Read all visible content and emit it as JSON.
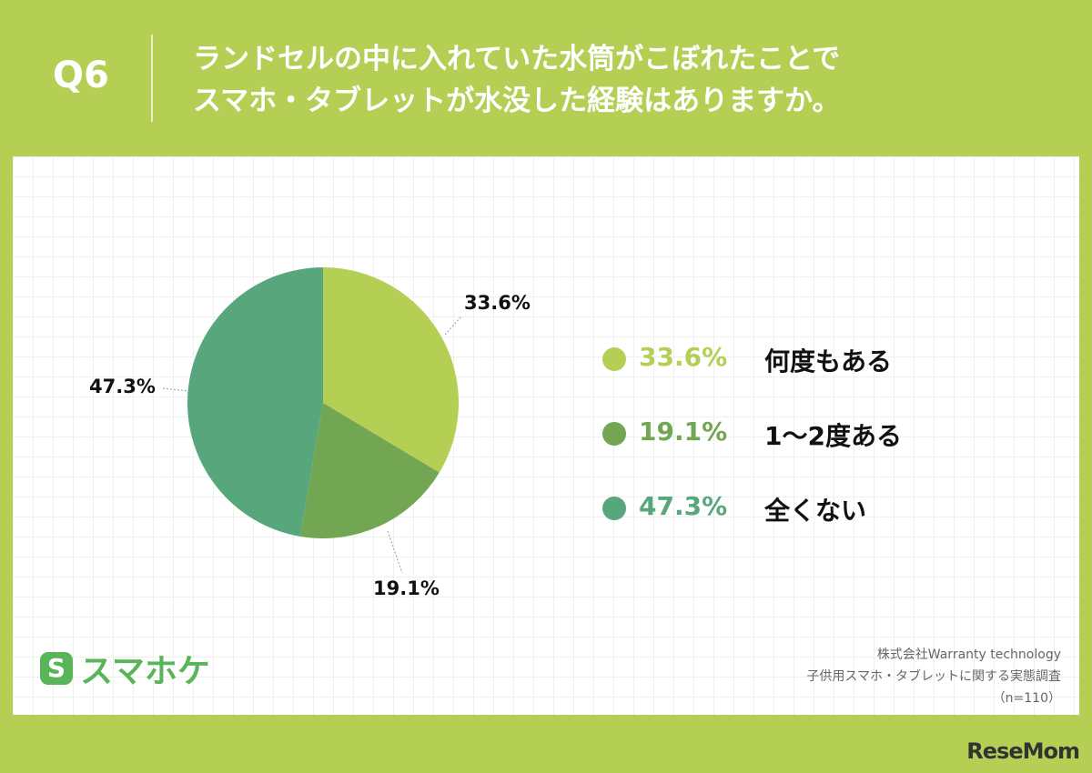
{
  "header": {
    "question_no": "Q6",
    "question_line1": "ランドセルの中に入れていた水筒がこぼれたことで",
    "question_line2": "スマホ・タブレットが水没した経験はありますか。"
  },
  "chart_data": {
    "type": "pie",
    "slices": [
      {
        "label": "何度もある",
        "value": 33.6,
        "display": "33.6%",
        "color": "#b5cf55"
      },
      {
        "label": "1〜2度ある",
        "value": 19.1,
        "display": "19.1%",
        "color": "#72a653"
      },
      {
        "label": "全くない",
        "value": 47.3,
        "display": "47.3%",
        "color": "#58a77c"
      }
    ],
    "legend_position": "right",
    "grid": false
  },
  "logo": {
    "mark": "S",
    "text": "スマホケ"
  },
  "source": {
    "line1": "株式会社Warranty technology",
    "line2": "子供用スマホ・タブレットに関する実態調査",
    "line3": "（n=110）"
  },
  "brand": "ReseMom"
}
